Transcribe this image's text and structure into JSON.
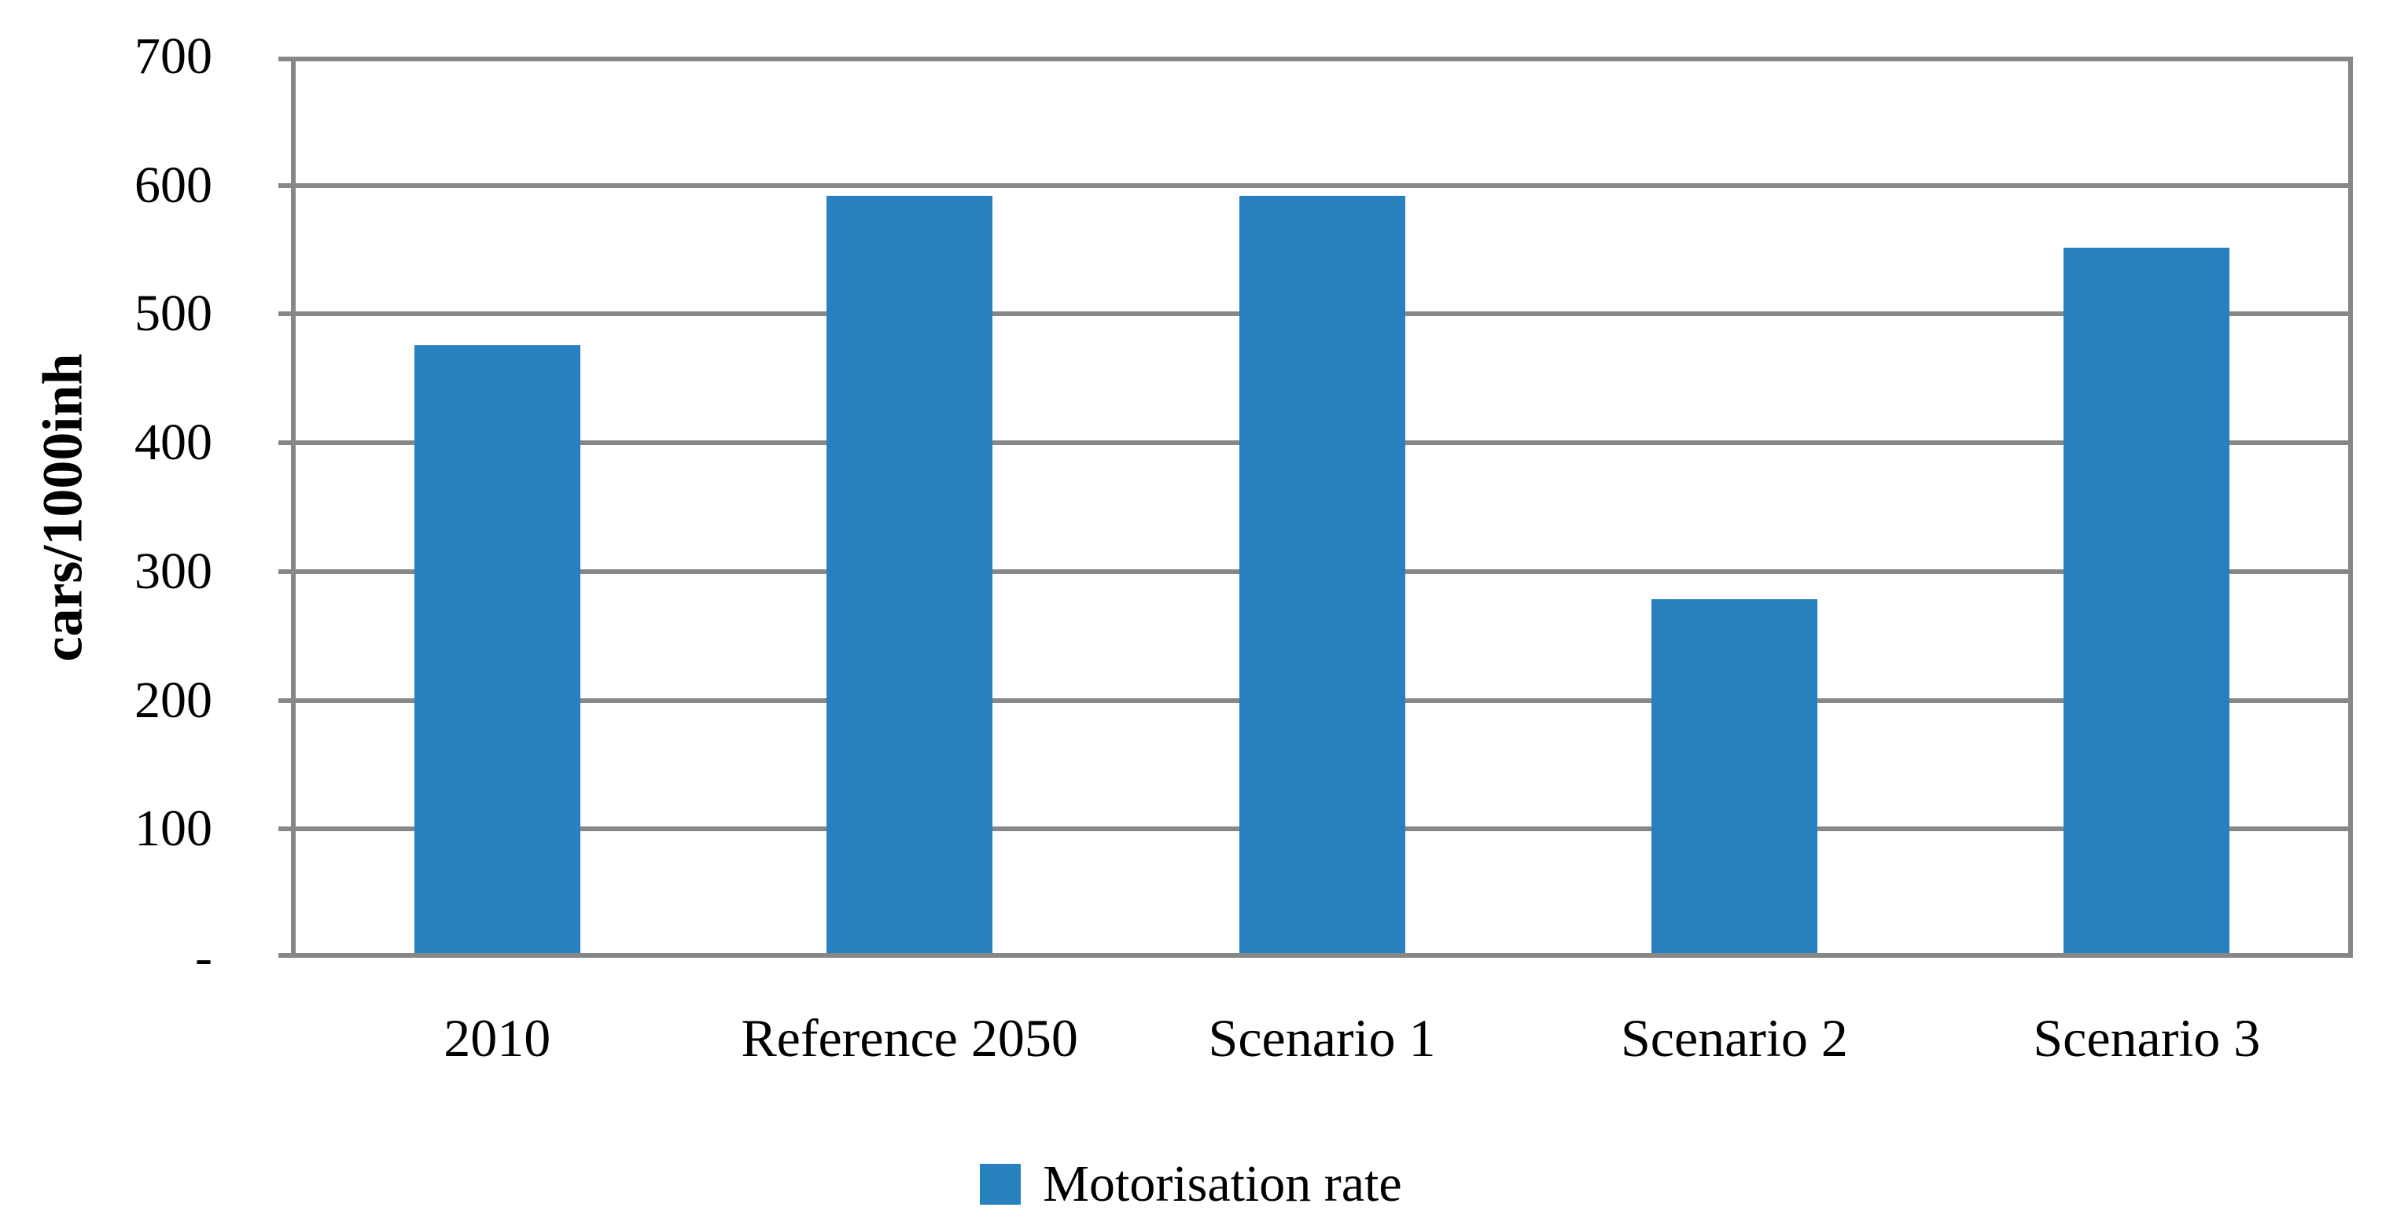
{
  "chart_data": {
    "type": "bar",
    "title": "",
    "categories": [
      "2010",
      "Reference 2050",
      "Scenario 1",
      "Scenario 2",
      "Scenario 3"
    ],
    "values": [
      472,
      588,
      588,
      275,
      548
    ],
    "series_name": "Motorisation rate",
    "xlabel": "",
    "ylabel": "cars/1000inh",
    "ylim": [
      0,
      700
    ],
    "ytick_step": 100,
    "ytick_labels": [
      "-",
      "100",
      "200",
      "300",
      "400",
      "500",
      "600",
      "700"
    ],
    "grid": true,
    "legend_position": "bottom",
    "bar_color": "#2781BE",
    "grid_color": "#878787",
    "axis_color": "#878787"
  }
}
